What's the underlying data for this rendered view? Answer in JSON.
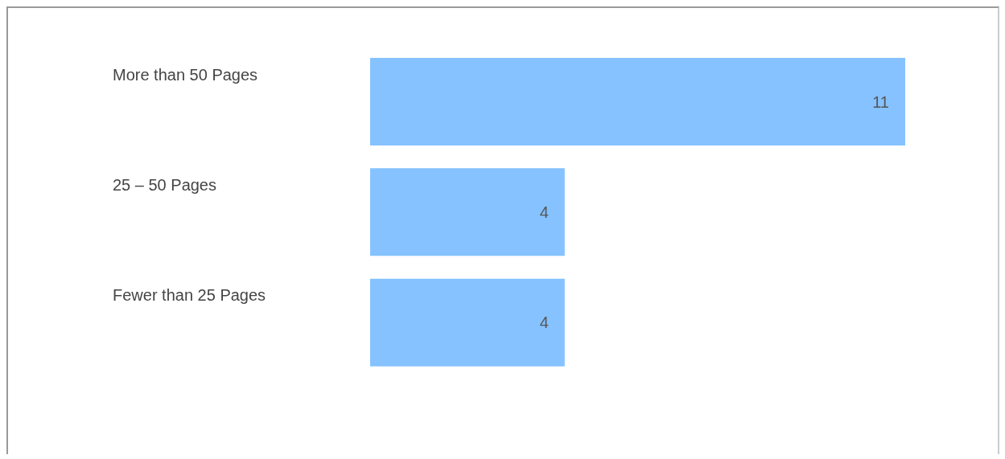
{
  "chart_data": {
    "type": "bar",
    "orientation": "horizontal",
    "categories": [
      "More than 50 Pages",
      "25 – 50 Pages",
      "Fewer than 25 Pages"
    ],
    "values": [
      11,
      4,
      4
    ],
    "color": "#85c2ff",
    "data_labels": true
  }
}
